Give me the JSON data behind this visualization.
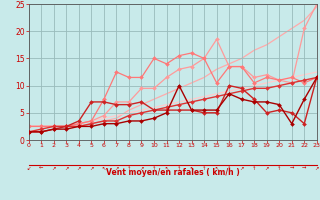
{
  "bg_color": "#c8eaea",
  "grid_color": "#99bbbb",
  "xlabel": "Vent moyen/en rafales ( km/h )",
  "xlabel_color": "#cc0000",
  "tick_color": "#cc0000",
  "axis_color": "#555555",
  "xlim": [
    0,
    23
  ],
  "ylim": [
    0,
    25
  ],
  "yticks": [
    0,
    5,
    10,
    15,
    20,
    25
  ],
  "xticks": [
    0,
    1,
    2,
    3,
    4,
    5,
    6,
    7,
    8,
    9,
    10,
    11,
    12,
    13,
    14,
    15,
    16,
    17,
    18,
    19,
    20,
    21,
    22,
    23
  ],
  "arrow_chars": [
    "↙",
    "←",
    "↗",
    "↗",
    "↗",
    "↗",
    "↖",
    "↗",
    "↑",
    "↗",
    "↑",
    "↖",
    "↑",
    "↖",
    "↑",
    "↖",
    "↑",
    "↗",
    "↑",
    "↗",
    "↑",
    "→",
    "→",
    "↗"
  ],
  "series": [
    {
      "x": [
        0,
        1,
        2,
        3,
        4,
        5,
        6,
        7,
        8,
        9,
        10,
        11,
        12,
        13,
        14,
        15,
        16,
        17,
        18,
        19,
        20,
        21,
        22,
        23
      ],
      "y": [
        2.5,
        2.5,
        2.5,
        2.5,
        2.5,
        3.0,
        3.5,
        4.0,
        5.5,
        6.5,
        7.5,
        8.5,
        9.5,
        10.5,
        11.5,
        13.0,
        14.0,
        15.0,
        16.5,
        17.5,
        19.0,
        20.5,
        22.0,
        24.5
      ],
      "color": "#ffaaaa",
      "marker": null,
      "lw": 0.9,
      "zorder": 1
    },
    {
      "x": [
        0,
        1,
        2,
        3,
        4,
        5,
        6,
        7,
        8,
        9,
        10,
        11,
        12,
        13,
        14,
        15,
        16,
        17,
        18,
        19,
        20,
        21,
        22,
        23
      ],
      "y": [
        2.5,
        2.5,
        2.5,
        2.5,
        3.0,
        3.5,
        4.5,
        7.0,
        7.0,
        9.5,
        9.5,
        11.5,
        13.0,
        13.5,
        15.0,
        18.5,
        13.5,
        13.5,
        11.5,
        12.0,
        11.0,
        10.5,
        20.5,
        25.0
      ],
      "color": "#ff9999",
      "marker": "D",
      "markersize": 2.0,
      "lw": 0.9,
      "zorder": 2
    },
    {
      "x": [
        0,
        1,
        2,
        3,
        4,
        5,
        6,
        7,
        8,
        9,
        10,
        11,
        12,
        13,
        14,
        15,
        16,
        17,
        18,
        19,
        20,
        21,
        22,
        23
      ],
      "y": [
        2.5,
        2.5,
        2.5,
        2.5,
        3.0,
        3.5,
        4.0,
        4.5,
        5.0,
        5.5,
        6.0,
        6.5,
        7.0,
        7.5,
        8.0,
        8.5,
        9.0,
        9.5,
        10.0,
        10.5,
        11.0,
        11.5,
        12.0,
        12.5
      ],
      "color": "#ffcccc",
      "marker": null,
      "lw": 0.9,
      "zorder": 1
    },
    {
      "x": [
        0,
        1,
        2,
        3,
        4,
        5,
        6,
        7,
        8,
        9,
        10,
        11,
        12,
        13,
        14,
        15,
        16,
        17,
        18,
        19,
        20,
        21,
        22,
        23
      ],
      "y": [
        2.5,
        2.5,
        2.5,
        2.5,
        3.0,
        3.5,
        7.5,
        12.5,
        11.5,
        11.5,
        15.0,
        14.0,
        15.5,
        16.0,
        15.0,
        10.5,
        13.5,
        13.5,
        10.5,
        11.5,
        11.0,
        11.5,
        10.5,
        11.5
      ],
      "color": "#ff7777",
      "marker": "D",
      "markersize": 2.0,
      "lw": 0.9,
      "zorder": 2
    },
    {
      "x": [
        0,
        1,
        2,
        3,
        4,
        5,
        6,
        7,
        8,
        9,
        10,
        11,
        12,
        13,
        14,
        15,
        16,
        17,
        18,
        19,
        20,
        21,
        22,
        23
      ],
      "y": [
        1.5,
        2.0,
        2.5,
        2.5,
        2.5,
        3.0,
        3.5,
        3.5,
        4.5,
        5.0,
        5.5,
        6.0,
        6.5,
        7.0,
        7.5,
        8.0,
        8.5,
        9.0,
        9.5,
        9.5,
        10.0,
        10.5,
        11.0,
        11.5
      ],
      "color": "#dd3333",
      "marker": "D",
      "markersize": 2.0,
      "lw": 1.0,
      "zorder": 3
    },
    {
      "x": [
        0,
        1,
        2,
        3,
        4,
        5,
        6,
        7,
        8,
        9,
        10,
        11,
        12,
        13,
        14,
        15,
        16,
        17,
        18,
        19,
        20,
        21,
        22,
        23
      ],
      "y": [
        1.5,
        1.5,
        2.0,
        2.5,
        3.5,
        7.0,
        7.0,
        6.5,
        6.5,
        7.0,
        5.5,
        5.5,
        5.5,
        5.5,
        5.0,
        5.0,
        10.0,
        9.5,
        7.5,
        5.0,
        5.5,
        5.0,
        3.0,
        11.5
      ],
      "color": "#cc2222",
      "marker": "D",
      "markersize": 2.0,
      "lw": 1.0,
      "zorder": 3
    },
    {
      "x": [
        0,
        1,
        2,
        3,
        4,
        5,
        6,
        7,
        8,
        9,
        10,
        11,
        12,
        13,
        14,
        15,
        16,
        17,
        18,
        19,
        20,
        21,
        22,
        23
      ],
      "y": [
        1.5,
        1.5,
        2.0,
        2.0,
        2.5,
        2.5,
        3.0,
        3.0,
        3.5,
        3.5,
        4.0,
        5.0,
        10.0,
        5.5,
        5.5,
        5.5,
        8.5,
        7.5,
        7.0,
        7.0,
        6.5,
        3.0,
        7.5,
        11.5
      ],
      "color": "#aa0000",
      "marker": "D",
      "markersize": 2.0,
      "lw": 1.0,
      "zorder": 4
    }
  ]
}
